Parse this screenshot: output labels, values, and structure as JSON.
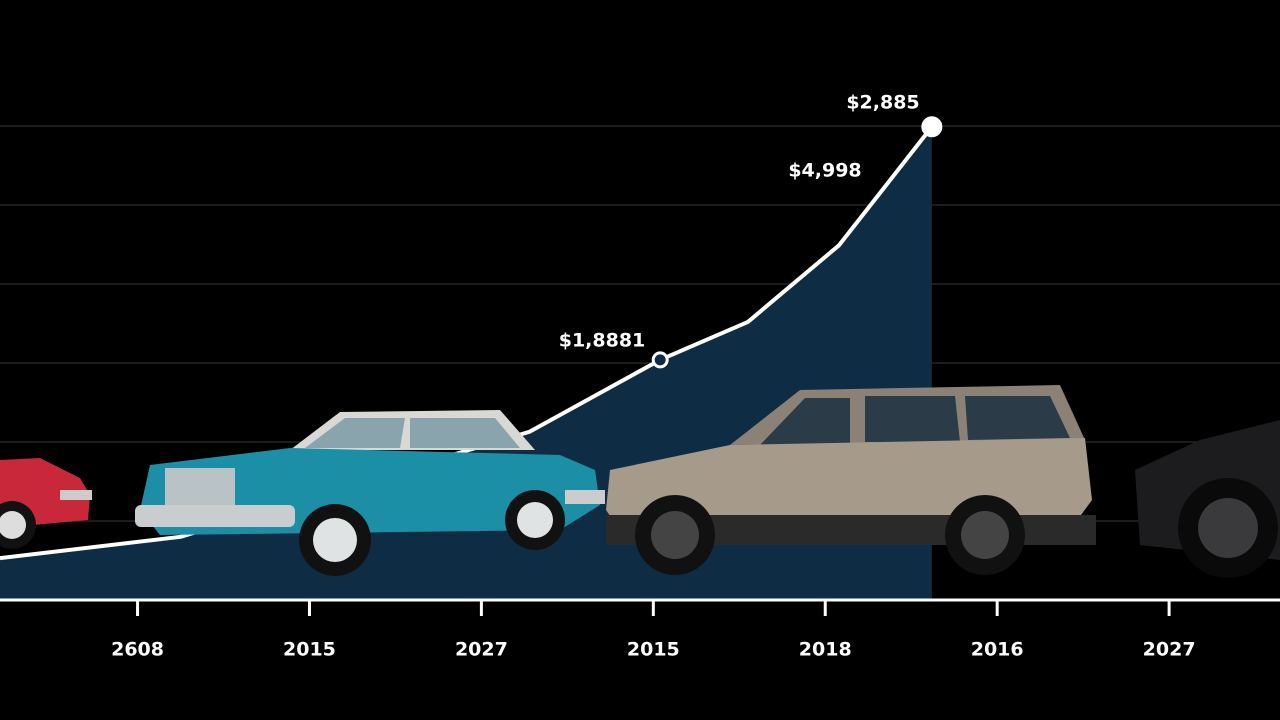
{
  "chart_data": {
    "type": "line",
    "x": [
      -0.8,
      0.25,
      2.28,
      3.04,
      3.55,
      4.08,
      4.62
    ],
    "series": [
      {
        "color": "#ffffff",
        "values": [
          0.53,
          0.8,
          2.13,
          3.04,
          3.52,
          4.49,
          5.99
        ]
      }
    ],
    "area_color": "#0f2c45",
    "xlim": [
      -0.8,
      6.645
    ],
    "xticks": [
      {
        "value": 0,
        "label": "2608"
      },
      {
        "value": 1,
        "label": "2015"
      },
      {
        "value": 2,
        "label": "2027"
      },
      {
        "value": 3,
        "label": "2015"
      },
      {
        "value": 4,
        "label": "2018"
      },
      {
        "value": 5,
        "label": "2016"
      },
      {
        "value": 6,
        "label": "2027"
      }
    ],
    "ylim": [
      0,
      7
    ],
    "yticks": [
      1,
      2,
      3,
      4,
      5,
      6
    ],
    "grid": true,
    "annotations": [
      "$2,885",
      "$4,998",
      "$1,8881"
    ]
  }
}
